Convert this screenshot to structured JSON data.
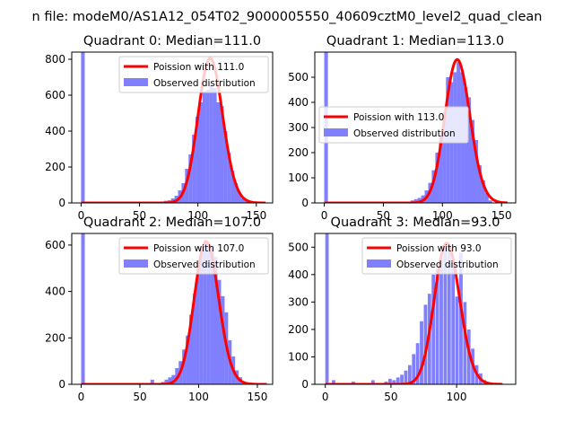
{
  "figure": {
    "suptitle": "n file: modeM0/AS1A12_054T02_9000005550_40609cztM0_level2_quad_clean"
  },
  "colors": {
    "fit_line": "#ff0000",
    "histogram": "#8080ff"
  },
  "chart_data": [
    {
      "type": "bar",
      "title": "Quadrant 0: Median=111.0",
      "xlim": [
        -8,
        164
      ],
      "ylim": [
        0,
        840
      ],
      "xticks": [
        0,
        50,
        100,
        150
      ],
      "yticks": [
        0,
        200,
        400,
        600,
        800
      ],
      "median": 111.0,
      "legend": {
        "placement": "upper right",
        "entries": [
          "Poission with 111.0",
          "Observed distribution"
        ]
      },
      "histogram": {
        "name": "Observed distribution",
        "bin_width": 3.1,
        "x": [
          0,
          65,
          68,
          71,
          74,
          77,
          80,
          83,
          86,
          89,
          92,
          95,
          98,
          101,
          104,
          107,
          110,
          113,
          116,
          119,
          122,
          125,
          128,
          131,
          134,
          137,
          140
        ],
        "values": [
          840,
          5,
          8,
          12,
          15,
          25,
          40,
          70,
          110,
          190,
          270,
          380,
          480,
          560,
          620,
          630,
          660,
          640,
          560,
          540,
          400,
          280,
          180,
          110,
          60,
          25,
          10
        ]
      },
      "poisson_fit": {
        "name": "Poission with 111.0",
        "mean": 111.0,
        "peak": 805,
        "x_range": [
          0,
          158
        ]
      }
    },
    {
      "type": "bar",
      "title": "Quadrant 1: Median=113.0",
      "xlim": [
        -8,
        162
      ],
      "ylim": [
        0,
        600
      ],
      "xticks": [
        0,
        50,
        100,
        150
      ],
      "yticks": [
        0,
        100,
        200,
        300,
        400,
        500
      ],
      "median": 113.0,
      "legend": {
        "placement": "center left",
        "entries": [
          "Poission with 113.0",
          "Observed distribution"
        ]
      },
      "histogram": {
        "name": "Observed distribution",
        "bin_width": 3.1,
        "x": [
          0,
          70,
          73,
          76,
          79,
          82,
          85,
          88,
          91,
          94,
          97,
          100,
          103,
          106,
          109,
          112,
          115,
          118,
          121,
          124,
          127,
          130,
          133,
          136,
          139
        ],
        "values": [
          600,
          5,
          10,
          15,
          20,
          30,
          50,
          80,
          130,
          200,
          270,
          360,
          500,
          480,
          520,
          560,
          520,
          460,
          420,
          330,
          250,
          150,
          90,
          40,
          10
        ]
      },
      "poisson_fit": {
        "name": "Poission with 113.0",
        "mean": 113.0,
        "peak": 570,
        "x_range": [
          0,
          155
        ]
      }
    },
    {
      "type": "bar",
      "title": "Quadrant 2: Median=107.0",
      "xlim": [
        -8,
        163
      ],
      "ylim": [
        0,
        650
      ],
      "xticks": [
        0,
        50,
        100,
        150
      ],
      "yticks": [
        0,
        200,
        400,
        600
      ],
      "median": 107.0,
      "legend": {
        "placement": "upper right",
        "entries": [
          "Poission with 107.0",
          "Observed distribution"
        ]
      },
      "histogram": {
        "name": "Observed distribution",
        "bin_width": 3.1,
        "x": [
          0,
          59,
          68,
          71,
          74,
          77,
          80,
          83,
          86,
          89,
          92,
          95,
          98,
          101,
          104,
          107,
          110,
          113,
          116,
          119,
          122,
          125,
          128,
          131,
          134,
          137
        ],
        "values": [
          650,
          20,
          10,
          20,
          30,
          40,
          70,
          100,
          150,
          210,
          300,
          390,
          500,
          590,
          620,
          610,
          600,
          550,
          450,
          380,
          310,
          190,
          120,
          60,
          30,
          10
        ]
      },
      "poisson_fit": {
        "name": "Poission with 107.0",
        "mean": 107.0,
        "peak": 615,
        "x_range": [
          0,
          158
        ]
      }
    },
    {
      "type": "bar",
      "title": "Quadrant 3: Median=93.0",
      "xlim": [
        -8,
        145
      ],
      "ylim": [
        0,
        550
      ],
      "xticks": [
        0,
        50,
        100
      ],
      "yticks": [
        0,
        100,
        200,
        300,
        400,
        500
      ],
      "median": 93.0,
      "legend": {
        "placement": "upper right",
        "entries": [
          "Poission with 93.0",
          "Observed distribution"
        ]
      },
      "histogram": {
        "name": "Observed distribution",
        "bin_width": 2.6,
        "x": [
          0,
          5,
          20,
          35,
          45,
          48,
          51,
          54,
          57,
          60,
          63,
          66,
          69,
          72,
          75,
          78,
          81,
          84,
          87,
          90,
          93,
          96,
          99,
          102,
          105,
          108,
          111,
          114,
          117,
          120
        ],
        "values": [
          550,
          15,
          10,
          15,
          10,
          20,
          15,
          25,
          35,
          50,
          70,
          110,
          150,
          230,
          290,
          330,
          400,
          420,
          460,
          500,
          510,
          460,
          320,
          480,
          300,
          200,
          130,
          70,
          40,
          15
        ]
      },
      "poisson_fit": {
        "name": "Poission with 93.0",
        "mean": 93.0,
        "peak": 515,
        "x_range": [
          0,
          135
        ]
      }
    }
  ]
}
